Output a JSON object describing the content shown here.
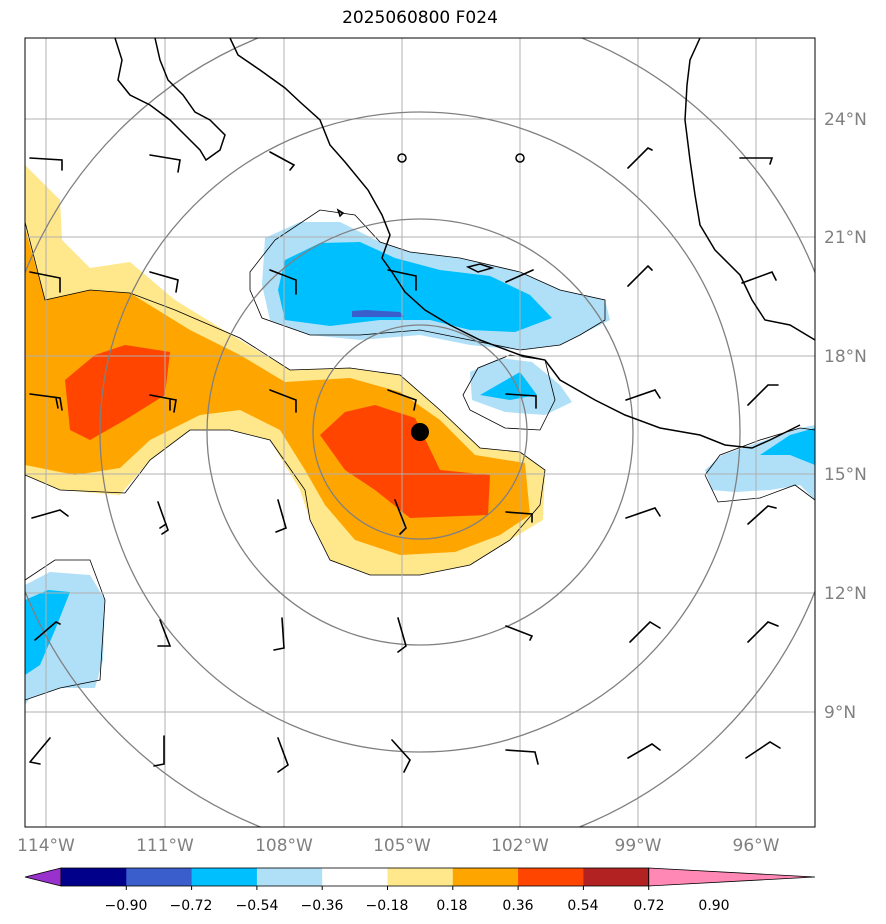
{
  "title": "2025060800 F024",
  "map": {
    "lat_labels": [
      "24°N",
      "21°N",
      "18°N",
      "15°N",
      "12°N",
      "9°N"
    ],
    "lon_labels": [
      "114°W",
      "111°W",
      "108°W",
      "105°W",
      "102°W",
      "99°W",
      "96°W"
    ],
    "center_marker": "storm-center-dot"
  },
  "colorbar": {
    "ticks": [
      "−0.90",
      "−0.72",
      "−0.54",
      "−0.36",
      "−0.18",
      "0.18",
      "0.36",
      "0.54",
      "0.72",
      "0.90"
    ],
    "colors": [
      "#9932cc",
      "#00008b",
      "#3a5fcd",
      "#00bfff",
      "#b0e0f8",
      "#ffffff",
      "#ffe88c",
      "#ffa500",
      "#ff4500",
      "#b22222",
      "#ff89b4"
    ]
  },
  "colors": {
    "grid": "#b0b0b0",
    "labels": "#808080",
    "coast": "#000000",
    "rings": "#808080"
  }
}
